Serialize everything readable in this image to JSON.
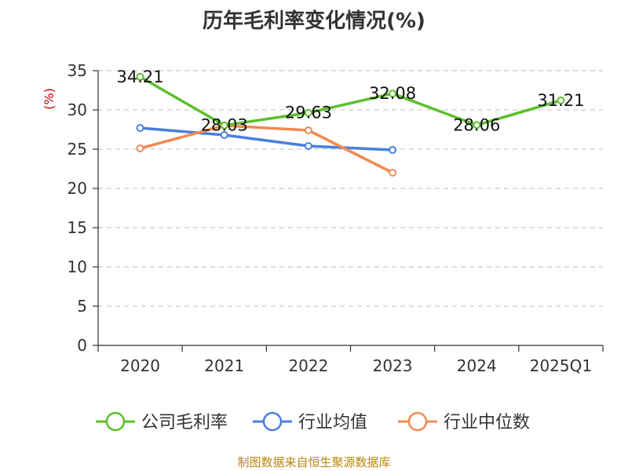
{
  "title": "历年毛利率变化情况(%)",
  "source": "制图数据来自恒生聚源数据库",
  "colors": {
    "company": "#5cc02a",
    "industry_avg": "#4a7fdc",
    "industry_median": "#f28a52",
    "grid": "#cccccc",
    "axis": "#333333",
    "ylabel": "#cc0000"
  },
  "chart_data": {
    "type": "line",
    "title": "历年毛利率变化情况(%)",
    "xlabel": "",
    "ylabel": "(%)",
    "categories": [
      "2020",
      "2021",
      "2022",
      "2023",
      "2024",
      "2025Q1"
    ],
    "ylim": [
      0,
      35
    ],
    "yticks": [
      0,
      5,
      10,
      15,
      20,
      25,
      30,
      35
    ],
    "grid": "horizontal dashed",
    "legend_position": "bottom",
    "series": [
      {
        "name": "公司毛利率",
        "color_key": "company",
        "show_labels": true,
        "values": [
          34.21,
          28.03,
          29.63,
          32.08,
          28.06,
          31.21
        ],
        "labels": [
          "34.21",
          "28.03",
          "29.63",
          "32.08",
          "28.06",
          "31.21"
        ]
      },
      {
        "name": "行业均值",
        "color_key": "industry_avg",
        "show_labels": false,
        "values": [
          27.7,
          26.8,
          25.4,
          24.9,
          null,
          null
        ]
      },
      {
        "name": "行业中位数",
        "color_key": "industry_median",
        "show_labels": false,
        "values": [
          25.1,
          28.0,
          27.4,
          22.0,
          null,
          null
        ]
      }
    ]
  }
}
